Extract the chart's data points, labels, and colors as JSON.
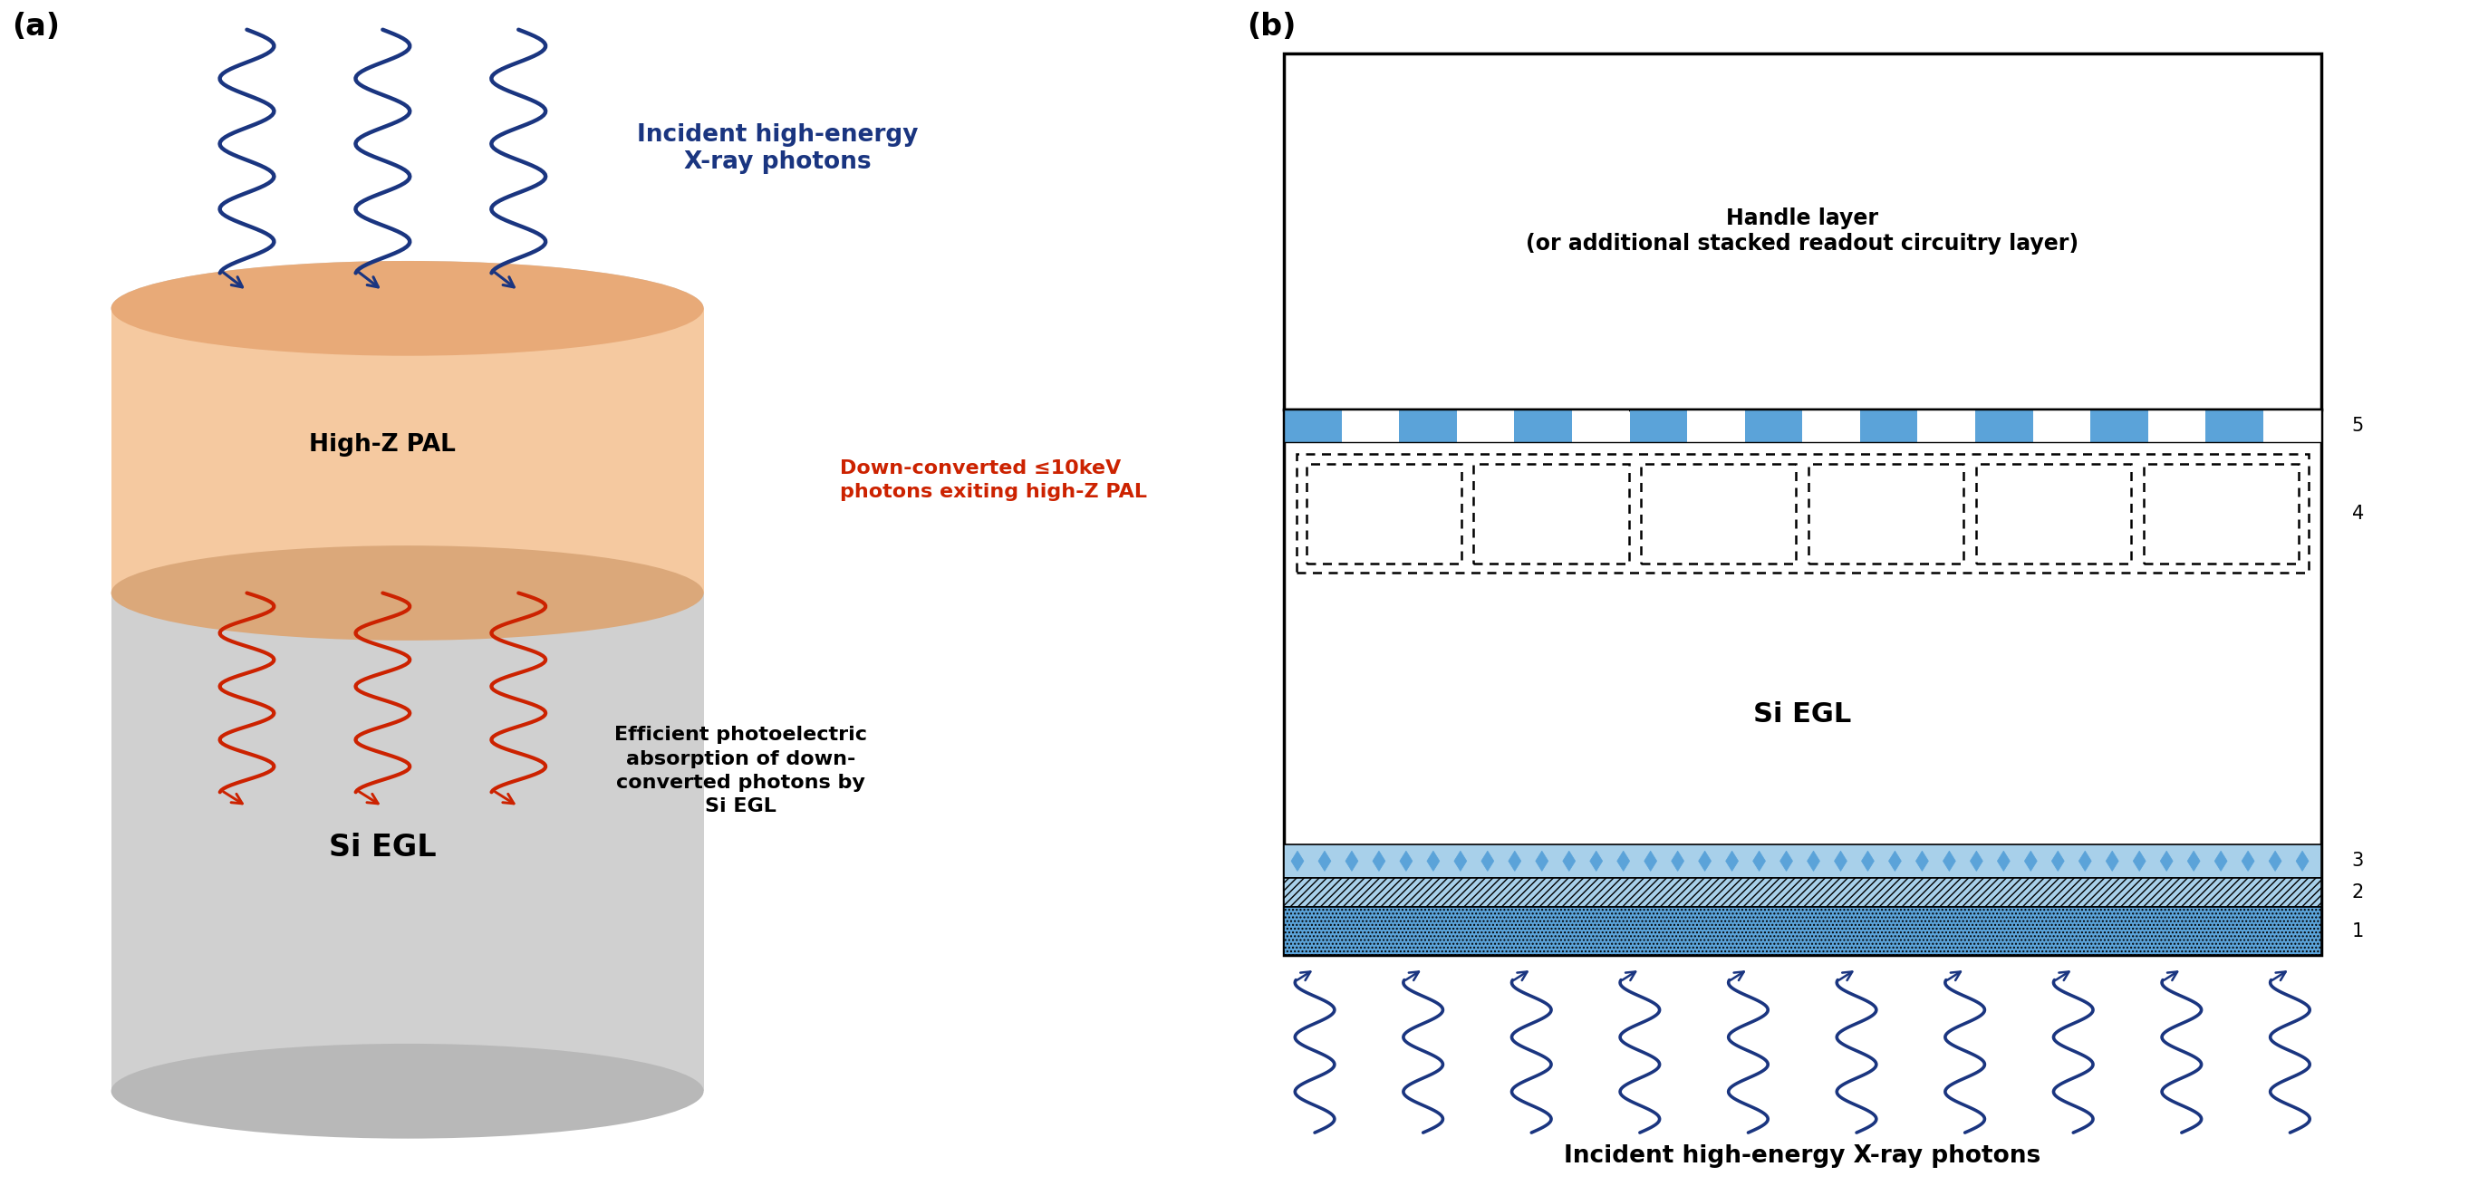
{
  "panel_a_label": "(a)",
  "panel_b_label": "(b)",
  "cylinder_color": "#d0d0d0",
  "pal_color": "#f5c9a0",
  "blue_color": "#1a3580",
  "red_color": "#cc2200",
  "handle_layer_text": "Handle layer\n(or additional stacked readout circuitry layer)",
  "si_egl_text": "Si EGL",
  "incident_label_a": "Incident high-energy\nX-ray photons",
  "down_converted_label": "Down-converted ≤10keV\nphotons exiting high-Z PAL",
  "photoelectric_label": "Efficient photoelectric\nabsorption of down-\nconverted photons by\nSi EGL",
  "high_z_pal_label": "High-Z PAL",
  "incident_label_b": "Incident high-energy X-ray photons",
  "layer_numbers": [
    "1",
    "2",
    "3",
    "4",
    "5"
  ],
  "blue_layer_color": "#5ba3d9",
  "light_blue_color": "#a8d0ea",
  "dotted_box_color": "#000000",
  "white": "#ffffff",
  "black": "#000000"
}
